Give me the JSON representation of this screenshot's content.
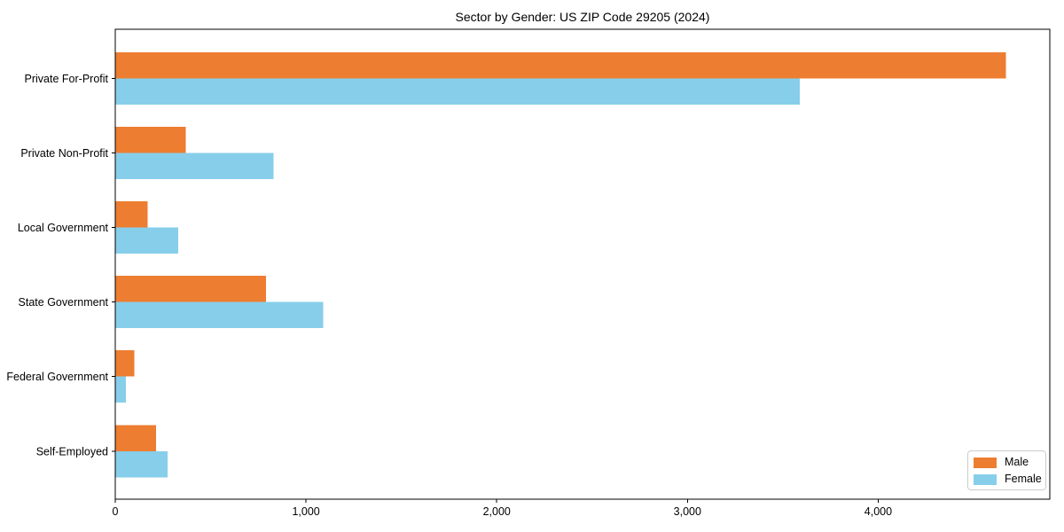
{
  "chart_data": {
    "type": "bar",
    "orientation": "horizontal",
    "title": "Sector by Gender: US ZIP Code 29205 (2024)",
    "categories": [
      "Private For-Profit",
      "Private Non-Profit",
      "Local Government",
      "State Government",
      "Federal Government",
      "Self-Employed"
    ],
    "series": [
      {
        "name": "Male",
        "color": "#ED7D31",
        "values": [
          4670,
          370,
          170,
          790,
          100,
          215
        ]
      },
      {
        "name": "Female",
        "color": "#87CEEB",
        "values": [
          3590,
          830,
          330,
          1090,
          55,
          275
        ]
      }
    ],
    "xlabel": "",
    "ylabel": "",
    "xlim": [
      0,
      4900
    ],
    "x_ticks": [
      0,
      1000,
      2000,
      3000,
      4000
    ],
    "x_tick_labels": [
      "0",
      "1,000",
      "2,000",
      "3,000",
      "4,000"
    ],
    "grid": false,
    "legend_position": "lower right",
    "background_color": "#ffffff",
    "axis_color": "#000000"
  }
}
